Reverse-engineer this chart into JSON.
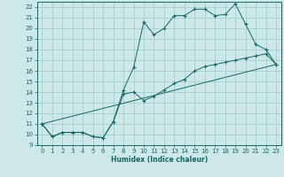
{
  "title": "",
  "xlabel": "Humidex (Indice chaleur)",
  "ylabel": "",
  "xlim": [
    -0.5,
    23.5
  ],
  "ylim": [
    9,
    22.5
  ],
  "yticks": [
    9,
    10,
    11,
    12,
    13,
    14,
    15,
    16,
    17,
    18,
    19,
    20,
    21,
    22
  ],
  "xticks": [
    0,
    1,
    2,
    3,
    4,
    5,
    6,
    7,
    8,
    9,
    10,
    11,
    12,
    13,
    14,
    15,
    16,
    17,
    18,
    19,
    20,
    21,
    22,
    23
  ],
  "bg_color": "#cce8e8",
  "grid_color": "#99cccc",
  "line_color": "#1a6666",
  "line1_x": [
    0,
    1,
    2,
    3,
    4,
    5,
    6,
    7,
    8,
    9,
    10,
    11,
    12,
    13,
    14,
    15,
    16,
    17,
    18,
    19,
    20,
    21,
    22,
    23
  ],
  "line1_y": [
    11.0,
    9.8,
    10.2,
    10.2,
    10.2,
    9.8,
    9.7,
    11.2,
    14.2,
    16.3,
    20.6,
    19.4,
    20.0,
    21.2,
    21.2,
    21.8,
    21.8,
    21.2,
    21.3,
    22.3,
    20.4,
    18.5,
    18.0,
    16.6
  ],
  "line2_x": [
    0,
    1,
    2,
    3,
    4,
    5,
    6,
    7,
    8,
    9,
    10,
    11,
    12,
    13,
    14,
    15,
    16,
    17,
    18,
    19,
    20,
    21,
    22,
    23
  ],
  "line2_y": [
    11.0,
    9.8,
    10.2,
    10.2,
    10.2,
    9.8,
    9.7,
    11.2,
    13.8,
    14.0,
    13.2,
    13.6,
    14.2,
    14.8,
    15.2,
    16.0,
    16.4,
    16.6,
    16.8,
    17.0,
    17.2,
    17.4,
    17.6,
    16.6
  ],
  "line3_x": [
    0,
    23
  ],
  "line3_y": [
    11.0,
    16.6
  ]
}
